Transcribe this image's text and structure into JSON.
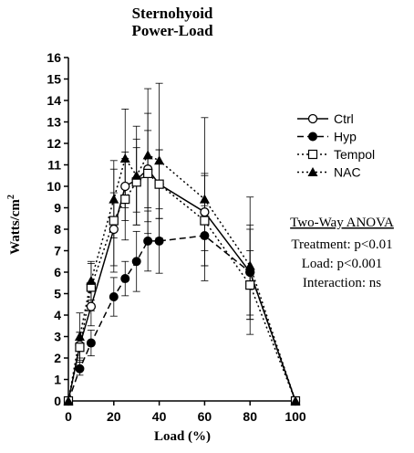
{
  "chart_data": {
    "type": "line",
    "title": "Sternohyoid",
    "subtitle": "Power-Load",
    "xlabel": "Load (%)",
    "ylabel": "Watts/cm",
    "ylabel_superscript": "2",
    "xlim": [
      0,
      100
    ],
    "ylim": [
      0,
      16
    ],
    "xticks": [
      0,
      20,
      40,
      60,
      80,
      100
    ],
    "yticks": [
      0,
      1,
      2,
      3,
      4,
      5,
      6,
      7,
      8,
      9,
      10,
      11,
      12,
      13,
      14,
      15,
      16
    ],
    "grid": false,
    "legend_position": "right",
    "x": [
      0,
      5,
      10,
      20,
      25,
      30,
      35,
      40,
      60,
      80,
      100
    ],
    "series": [
      {
        "name": "Ctrl",
        "marker": "open-circle",
        "line": "solid",
        "values": [
          0,
          2.6,
          4.4,
          8.0,
          10.0,
          10.3,
          10.8,
          10.1,
          8.8,
          6.0,
          0
        ],
        "errors": [
          0,
          0.6,
          0.9,
          1.7,
          1.6,
          1.5,
          1.8,
          1.6,
          1.8,
          2.2,
          0
        ]
      },
      {
        "name": "Hyp",
        "marker": "filled-circle",
        "line": "dashed",
        "values": [
          0,
          1.5,
          2.7,
          4.85,
          5.7,
          6.5,
          7.45,
          7.45,
          7.7,
          6.0,
          0
        ],
        "errors": [
          0,
          0.3,
          0.6,
          0.9,
          0.8,
          1.4,
          1.4,
          1.5,
          1.4,
          2.0,
          0
        ]
      },
      {
        "name": "Tempol",
        "marker": "open-square",
        "line": "dotted",
        "values": [
          0,
          2.5,
          5.3,
          8.4,
          9.4,
          10.2,
          10.6,
          10.1,
          8.4,
          5.4,
          0
        ],
        "errors": [
          0,
          0.7,
          1.1,
          2.4,
          1.9,
          2.0,
          2.8,
          1.6,
          2.1,
          1.6,
          0
        ]
      },
      {
        "name": "NAC",
        "marker": "filled-triangle",
        "line": "dotted",
        "values": [
          0,
          3.0,
          5.6,
          9.4,
          11.3,
          10.5,
          11.45,
          11.2,
          9.4,
          6.3,
          0
        ],
        "errors": [
          0,
          1.1,
          0.9,
          1.8,
          2.3,
          2.3,
          3.1,
          3.6,
          3.8,
          3.2,
          0
        ]
      }
    ],
    "annotations": {
      "anova_title": "Two-Way ANOVA",
      "treatment": "Treatment: p<0.01",
      "load": "Load: p<0.001",
      "interaction": "Interaction: ns"
    },
    "colors": {
      "ink": "#000000",
      "background": "#ffffff"
    }
  }
}
